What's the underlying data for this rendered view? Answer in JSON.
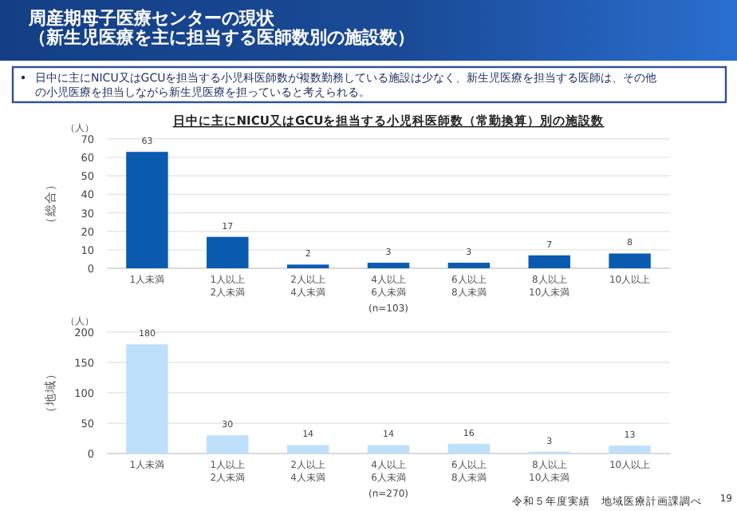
{
  "chart_data": [
    {
      "type": "bar",
      "title": "日中に主にNICU又はGCUを担当する小児科医師数（常勤換算）別の施設数",
      "ylabel": "（総合）",
      "xlabel": "(n=103)",
      "annotations": [
        "周産期母子医療センターの現状（新生児医療を主に担当する医師数別の施設数）",
        "日中に主にNICU又はGCUを担当する小児科医師数が複数勤務している施設は少なく、新生児医療を担当する医師は、その他の小児医療を担当しながら新生児医療を担っていると考えられる。",
        "（人）"
      ],
      "categories": [
        "1人未満",
        "1人以上\n2人未満",
        "2人以上\n4人未満",
        "4人以上\n6人未満",
        "6人以上\n8人未満",
        "8人以上\n10人未満",
        "10人以上"
      ],
      "values": [
        63,
        17,
        2,
        3,
        3,
        7,
        8
      ],
      "color": "#0a5bb0",
      "ylim": [
        0,
        70
      ],
      "yticks": [
        0,
        10,
        20,
        30,
        40,
        50,
        60,
        70
      ],
      "grid": "y",
      "data_labels": true
    },
    {
      "type": "bar",
      "ylabel": "（地域）",
      "xlabel": "(n=270)",
      "annotations": [
        "（人）",
        "令和５年度実績　地域医療計画課調べ",
        "19"
      ],
      "categories": [
        "1人未満",
        "1人以上\n2人未満",
        "2人以上\n4人未満",
        "4人以上\n6人未満",
        "6人以上\n8人未満",
        "8人以上\n10人未満",
        "10人以上"
      ],
      "values": [
        180,
        30,
        14,
        14,
        16,
        3,
        13
      ],
      "color": "#bfe0fb",
      "ylim": [
        0,
        200
      ],
      "yticks": [
        0,
        50,
        100,
        150,
        200
      ],
      "grid": "y",
      "data_labels": true
    }
  ]
}
